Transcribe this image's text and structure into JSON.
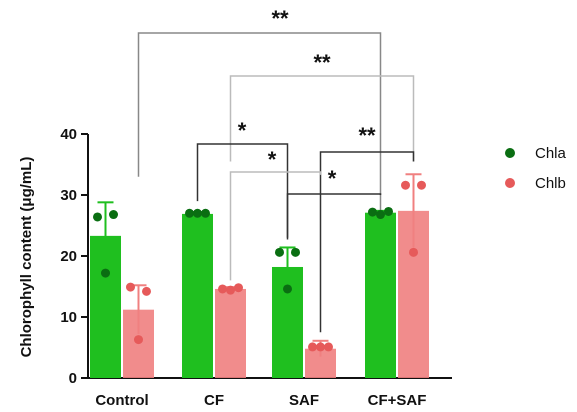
{
  "chart_data": {
    "type": "bar",
    "ylabel": "Chlorophyll content (μg/mL)",
    "xlabel": "",
    "ylim": [
      0,
      40
    ],
    "yticks": [
      0,
      10,
      20,
      30,
      40
    ],
    "categories": [
      "Control",
      "CF",
      "SAF",
      "CF+SAF"
    ],
    "legend_position": "right",
    "series": [
      {
        "name": "Chla",
        "color": "#1fbf1f",
        "dot_color": "#0a6e12",
        "values": [
          23.3,
          26.9,
          18.2,
          27.1
        ],
        "errors": [
          5.5,
          0.3,
          3.2,
          0.3
        ],
        "points": [
          [
            26.4,
            26.8,
            17.2
          ],
          [
            27.0,
            27.0,
            27.0
          ],
          [
            20.6,
            20.6,
            14.6
          ],
          [
            27.2,
            27.3,
            26.8
          ]
        ]
      },
      {
        "name": "Chlb",
        "color": "#f08080",
        "dot_color": "#e65a5a",
        "values": [
          11.2,
          14.6,
          4.8,
          27.4
        ],
        "errors": [
          4.0,
          0.3,
          1.3,
          6.0
        ],
        "points": [
          [
            14.9,
            14.2,
            6.3
          ],
          [
            14.6,
            14.8,
            14.4
          ],
          [
            5.1,
            5.1,
            5.1
          ],
          [
            31.6,
            31.6,
            20.6
          ]
        ]
      }
    ],
    "annotations": [
      {
        "label": "**",
        "from": [
          0,
          1
        ],
        "to": [
          3,
          0
        ]
      },
      {
        "label": "**",
        "from": [
          1,
          1
        ],
        "to": [
          3,
          1
        ]
      },
      {
        "label": "*",
        "from": [
          1,
          0
        ],
        "to": [
          2,
          0
        ]
      },
      {
        "label": "**",
        "from": [
          2,
          1
        ],
        "to": [
          3,
          1
        ]
      },
      {
        "label": "*",
        "from": [
          1,
          1
        ],
        "to": [
          2,
          1
        ]
      },
      {
        "label": "*",
        "from": [
          2,
          0
        ],
        "to": [
          3,
          0
        ]
      }
    ]
  }
}
